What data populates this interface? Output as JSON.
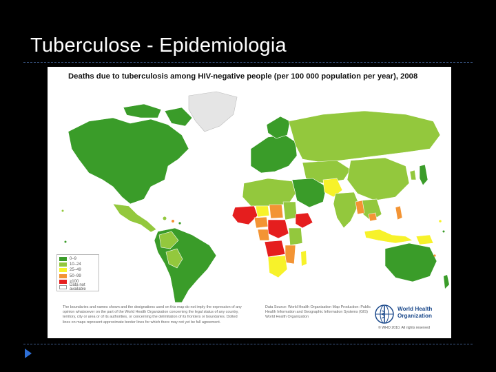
{
  "slide": {
    "title": "Tuberculose - Epidemiologia"
  },
  "map": {
    "title": "Deaths due to tuberculosis among HIV-negative people (per 100 000 population per year), 2008",
    "legend": [
      {
        "label": "0–9",
        "color": "#3a9c29"
      },
      {
        "label": "10–24",
        "color": "#93c83d"
      },
      {
        "label": "25–49",
        "color": "#f7f22a"
      },
      {
        "label": "50–99",
        "color": "#f39434"
      },
      {
        "label": "≥100",
        "color": "#e51e1e"
      },
      {
        "label": "Data not available",
        "color": "#ffffff"
      }
    ],
    "disclaimer": "The boundaries and names shown and the designations used on this map do not imply the expression of any opinion whatsoever on the part of the World Health Organization concerning the legal status of any country, territory, city or area or of its authorities, or concerning the delimitation of its frontiers or boundaries. Dotted lines on maps represent approximate border lines for which there may not yet be full agreement.",
    "source": "Data Source: World Health Organization Map Production: Public Health Information and Geographic Information Systems (GIS) World Health Organization",
    "who_name_line1": "World Health",
    "who_name_line2": "Organization",
    "copyright": "© WHO 2010. All rights reserved"
  }
}
